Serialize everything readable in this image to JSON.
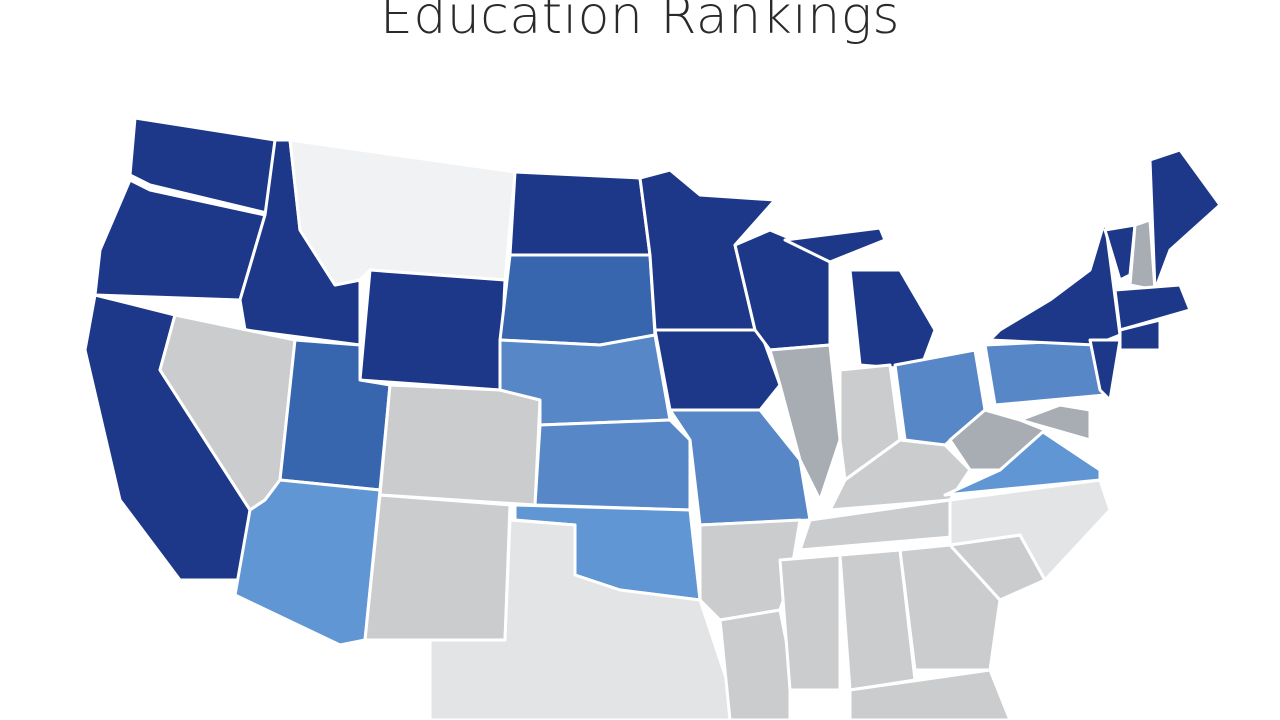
{
  "title": "Education Rankings"
}
